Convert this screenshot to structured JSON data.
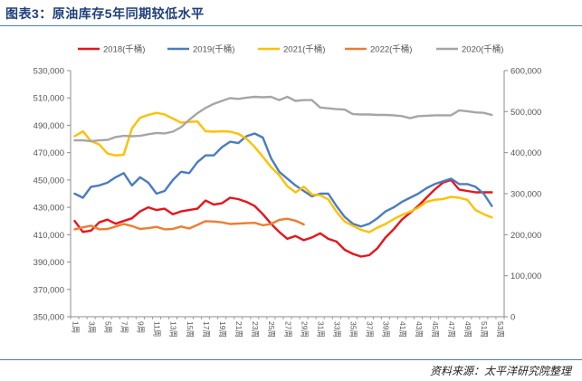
{
  "header": {
    "title": "图表3：原油库存5年同期较低水平"
  },
  "footer": {
    "source": "资料来源：太平洋研究院整理"
  },
  "chart_data": {
    "type": "line",
    "x": [
      "1周",
      "2周",
      "3周",
      "4周",
      "5周",
      "6周",
      "7周",
      "8周",
      "9周",
      "10周",
      "11周",
      "12周",
      "13周",
      "14周",
      "15周",
      "16周",
      "17周",
      "18周",
      "19周",
      "20周",
      "21周",
      "22周",
      "23周",
      "24周",
      "25周",
      "26周",
      "27周",
      "28周",
      "29周",
      "30周",
      "31周",
      "32周",
      "33周",
      "34周",
      "35周",
      "36周",
      "37周",
      "38周",
      "39周",
      "40周",
      "41周",
      "42周",
      "43周",
      "44周",
      "45周",
      "46周",
      "47周",
      "48周",
      "49周",
      "50周",
      "51周",
      "52周",
      "53周"
    ],
    "x_tick_labels": [
      "1周",
      "3周",
      "5周",
      "7周",
      "9周",
      "11周",
      "13周",
      "15周",
      "17周",
      "19周",
      "21周",
      "23周",
      "25周",
      "27周",
      "29周",
      "31周",
      "33周",
      "35周",
      "37周",
      "39周",
      "41周",
      "43周",
      "45周",
      "47周",
      "49周",
      "51周",
      "53周"
    ],
    "yleft": {
      "ylim": [
        350000,
        530000
      ],
      "ticks": [
        "350,000",
        "370,000",
        "390,000",
        "410,000",
        "430,000",
        "450,000",
        "470,000",
        "490,000",
        "510,000",
        "530,000"
      ]
    },
    "yright": {
      "ylim": [
        0,
        600000
      ],
      "ticks": [
        "0",
        "100,000",
        "200,000",
        "300,000",
        "400,000",
        "500,000",
        "600,000"
      ]
    },
    "series": [
      {
        "name": "2018(千桶)",
        "axis": "left",
        "color": "#e8141a",
        "values": [
          420000,
          412000,
          413000,
          419000,
          421000,
          418000,
          420000,
          422000,
          427000,
          430000,
          428000,
          429000,
          425000,
          427000,
          428000,
          429000,
          435000,
          432000,
          433000,
          437000,
          436000,
          434000,
          431000,
          425000,
          418000,
          412000,
          407000,
          409000,
          406000,
          408000,
          411000,
          407000,
          405000,
          399000,
          396000,
          394000,
          395000,
          400000,
          408000,
          414000,
          421000,
          426000,
          431000,
          437000,
          443000,
          448000,
          450000,
          443000,
          442000,
          441000,
          441000,
          441000,
          null
        ]
      },
      {
        "name": "2019(千桶)",
        "axis": "left",
        "color": "#4a7cc0",
        "values": [
          440000,
          437000,
          445000,
          446000,
          448000,
          452000,
          455000,
          446000,
          452000,
          448000,
          440000,
          442000,
          450000,
          456000,
          455000,
          463000,
          468000,
          468000,
          474000,
          478000,
          477000,
          482000,
          484000,
          481000,
          466000,
          456000,
          451000,
          446000,
          442000,
          438000,
          440000,
          440000,
          431000,
          423000,
          418000,
          416000,
          418000,
          422000,
          427000,
          430000,
          434000,
          437000,
          440000,
          444000,
          447000,
          449000,
          451000,
          447000,
          447000,
          445000,
          440000,
          431000,
          null
        ]
      },
      {
        "name": "2021(千桶)",
        "axis": "right",
        "color": "#ffc000",
        "values": [
          440000,
          452000,
          428000,
          420000,
          398000,
          393000,
          395000,
          459000,
          485000,
          492000,
          497000,
          493000,
          483000,
          473000,
          475000,
          476000,
          452000,
          451000,
          452000,
          451000,
          446000,
          434000,
          414000,
          390000,
          365000,
          345000,
          318000,
          303000,
          317000,
          298000,
          296000,
          286000,
          256000,
          232000,
          222000,
          212000,
          206000,
          217000,
          226000,
          238000,
          248000,
          256000,
          266000,
          280000,
          285000,
          287000,
          292000,
          290000,
          285000,
          260000,
          250000,
          242000,
          null
        ]
      },
      {
        "name": "2022(千桶)",
        "axis": "right",
        "color": "#ed7d31",
        "values": [
          213000,
          218000,
          222000,
          213000,
          214000,
          220000,
          226000,
          221000,
          214000,
          216000,
          219000,
          213000,
          214000,
          220000,
          215000,
          224000,
          233000,
          232000,
          230000,
          226000,
          227000,
          228000,
          229000,
          223000,
          226000,
          236000,
          239000,
          234000,
          225000,
          null,
          null,
          null,
          null,
          null,
          null,
          null,
          null,
          null,
          null,
          null,
          null,
          null,
          null,
          null,
          null,
          null,
          null,
          null,
          null,
          null,
          null,
          null,
          null
        ]
      },
      {
        "name": "2020(千桶)",
        "axis": "right",
        "color": "#a6a6a6",
        "values": [
          430000,
          430000,
          428000,
          430000,
          431000,
          438000,
          441000,
          440000,
          441000,
          445000,
          448000,
          447000,
          451000,
          462000,
          480000,
          496000,
          509000,
          519000,
          526000,
          533000,
          531000,
          534000,
          536000,
          535000,
          536000,
          528000,
          536000,
          526000,
          528000,
          528000,
          510000,
          508000,
          506000,
          505000,
          494000,
          493000,
          493000,
          492000,
          492000,
          491000,
          489000,
          484000,
          489000,
          490000,
          491000,
          491000,
          491000,
          503000,
          501000,
          498000,
          497000,
          492000,
          null
        ]
      }
    ]
  }
}
